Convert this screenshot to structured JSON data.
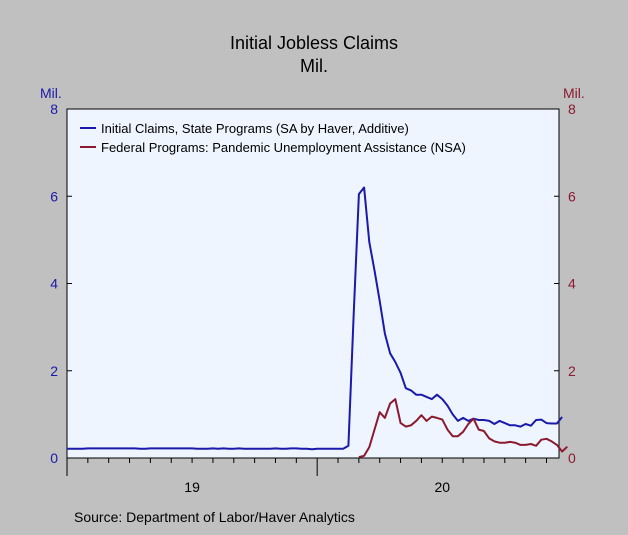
{
  "chart_data": {
    "type": "line",
    "title": "Initial Jobless Claims",
    "subtitle": "Mil.",
    "left_axis": {
      "unit_label": "Mil.",
      "ylim": [
        0,
        8
      ],
      "ticks": [
        "0",
        "2",
        "4",
        "6",
        "8"
      ],
      "color": "#1a1aaa"
    },
    "right_axis": {
      "unit_label": "Mil.",
      "ylim": [
        0,
        8
      ],
      "ticks": [
        "0",
        "2",
        "4",
        "6",
        "8"
      ],
      "color": "#8b1a2e"
    },
    "x_tick_labels": [
      {
        "label": "19",
        "month_index": 6
      },
      {
        "label": "20",
        "month_index": 18
      }
    ],
    "xlim_months": [
      0,
      23.6
    ],
    "legend_position": "top-left",
    "grid": false,
    "source": "Source: Department of Labor/Haver Analytics",
    "series": [
      {
        "name": "Initial Claims, State Programs (SA by Haver, Additive)",
        "axis": "left",
        "color": "#1a1aaa",
        "points": [
          [
            0.0,
            0.21
          ],
          [
            0.25,
            0.21
          ],
          [
            0.5,
            0.21
          ],
          [
            0.75,
            0.21
          ],
          [
            1.0,
            0.22
          ],
          [
            1.25,
            0.22
          ],
          [
            1.5,
            0.22
          ],
          [
            1.75,
            0.22
          ],
          [
            2.0,
            0.22
          ],
          [
            2.25,
            0.22
          ],
          [
            2.5,
            0.22
          ],
          [
            2.75,
            0.22
          ],
          [
            3.0,
            0.22
          ],
          [
            3.25,
            0.22
          ],
          [
            3.5,
            0.21
          ],
          [
            3.75,
            0.21
          ],
          [
            4.0,
            0.22
          ],
          [
            4.25,
            0.22
          ],
          [
            4.5,
            0.22
          ],
          [
            4.75,
            0.22
          ],
          [
            5.0,
            0.22
          ],
          [
            5.25,
            0.22
          ],
          [
            5.5,
            0.22
          ],
          [
            5.75,
            0.22
          ],
          [
            6.0,
            0.22
          ],
          [
            6.25,
            0.21
          ],
          [
            6.5,
            0.21
          ],
          [
            6.75,
            0.21
          ],
          [
            7.0,
            0.22
          ],
          [
            7.25,
            0.21
          ],
          [
            7.5,
            0.22
          ],
          [
            7.75,
            0.21
          ],
          [
            8.0,
            0.21
          ],
          [
            8.25,
            0.22
          ],
          [
            8.5,
            0.21
          ],
          [
            8.75,
            0.21
          ],
          [
            9.0,
            0.21
          ],
          [
            9.25,
            0.21
          ],
          [
            9.5,
            0.21
          ],
          [
            9.75,
            0.21
          ],
          [
            10.0,
            0.22
          ],
          [
            10.25,
            0.21
          ],
          [
            10.5,
            0.21
          ],
          [
            10.75,
            0.22
          ],
          [
            11.0,
            0.22
          ],
          [
            11.25,
            0.21
          ],
          [
            11.5,
            0.21
          ],
          [
            11.75,
            0.2
          ],
          [
            12.0,
            0.21
          ],
          [
            12.25,
            0.21
          ],
          [
            12.5,
            0.21
          ],
          [
            12.75,
            0.21
          ],
          [
            13.0,
            0.21
          ],
          [
            13.25,
            0.21
          ],
          [
            13.5,
            0.28
          ],
          [
            13.75,
            3.3
          ],
          [
            14.0,
            6.05
          ],
          [
            14.25,
            6.2
          ],
          [
            14.5,
            4.95
          ],
          [
            14.75,
            4.3
          ],
          [
            15.0,
            3.6
          ],
          [
            15.25,
            2.85
          ],
          [
            15.5,
            2.4
          ],
          [
            15.75,
            2.2
          ],
          [
            16.0,
            1.95
          ],
          [
            16.25,
            1.6
          ],
          [
            16.5,
            1.55
          ],
          [
            16.75,
            1.45
          ],
          [
            17.0,
            1.45
          ],
          [
            17.25,
            1.4
          ],
          [
            17.5,
            1.35
          ],
          [
            17.75,
            1.45
          ],
          [
            18.0,
            1.35
          ],
          [
            18.25,
            1.2
          ],
          [
            18.5,
            1.0
          ],
          [
            18.75,
            0.85
          ],
          [
            19.0,
            0.92
          ],
          [
            19.25,
            0.85
          ],
          [
            19.5,
            0.9
          ],
          [
            19.75,
            0.87
          ],
          [
            20.0,
            0.87
          ],
          [
            20.25,
            0.85
          ],
          [
            20.5,
            0.78
          ],
          [
            20.75,
            0.85
          ],
          [
            21.0,
            0.8
          ],
          [
            21.25,
            0.75
          ],
          [
            21.5,
            0.75
          ],
          [
            21.75,
            0.72
          ],
          [
            22.0,
            0.78
          ],
          [
            22.25,
            0.74
          ],
          [
            22.5,
            0.87
          ],
          [
            22.75,
            0.88
          ],
          [
            23.0,
            0.8
          ],
          [
            23.25,
            0.79
          ],
          [
            23.5,
            0.79
          ],
          [
            23.75,
            0.94
          ]
        ]
      },
      {
        "name": "Federal Programs: Pandemic Unemployment Assistance (NSA)",
        "axis": "right",
        "color": "#8b1a2e",
        "points": [
          [
            14.0,
            0.02
          ],
          [
            14.25,
            0.05
          ],
          [
            14.5,
            0.25
          ],
          [
            14.75,
            0.65
          ],
          [
            15.0,
            1.05
          ],
          [
            15.25,
            0.92
          ],
          [
            15.5,
            1.25
          ],
          [
            15.75,
            1.35
          ],
          [
            16.0,
            0.8
          ],
          [
            16.25,
            0.72
          ],
          [
            16.5,
            0.75
          ],
          [
            16.75,
            0.85
          ],
          [
            17.0,
            0.98
          ],
          [
            17.25,
            0.85
          ],
          [
            17.5,
            0.95
          ],
          [
            17.75,
            0.92
          ],
          [
            18.0,
            0.88
          ],
          [
            18.25,
            0.65
          ],
          [
            18.5,
            0.5
          ],
          [
            18.75,
            0.5
          ],
          [
            19.0,
            0.6
          ],
          [
            19.25,
            0.78
          ],
          [
            19.5,
            0.9
          ],
          [
            19.75,
            0.65
          ],
          [
            20.0,
            0.62
          ],
          [
            20.25,
            0.45
          ],
          [
            20.5,
            0.38
          ],
          [
            20.75,
            0.35
          ],
          [
            21.0,
            0.35
          ],
          [
            21.25,
            0.37
          ],
          [
            21.5,
            0.35
          ],
          [
            21.75,
            0.3
          ],
          [
            22.0,
            0.3
          ],
          [
            22.25,
            0.32
          ],
          [
            22.5,
            0.28
          ],
          [
            22.75,
            0.42
          ],
          [
            23.0,
            0.44
          ],
          [
            23.25,
            0.38
          ],
          [
            23.5,
            0.3
          ],
          [
            23.75,
            0.15
          ],
          [
            24.0,
            0.26
          ]
        ]
      }
    ]
  }
}
